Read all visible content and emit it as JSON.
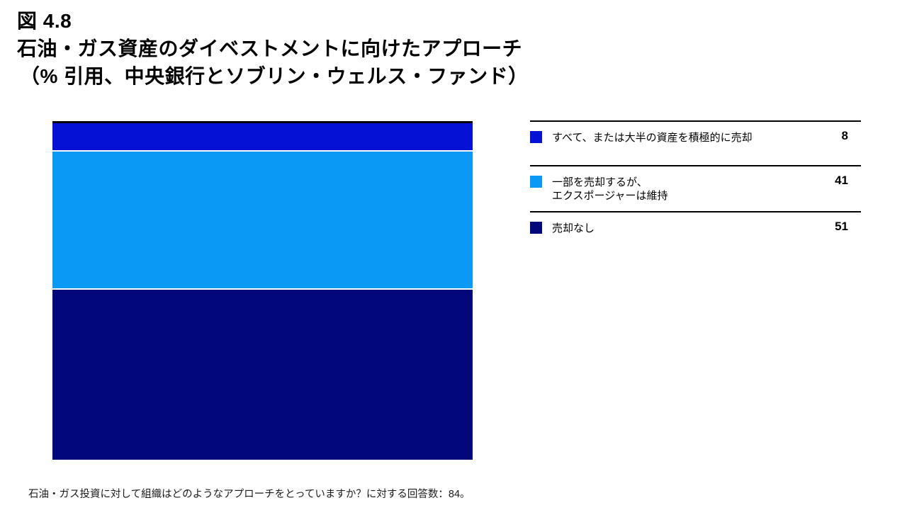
{
  "title": {
    "figure_label": "図 4.8",
    "main": "石油・ガス資産のダイベストメントに向けたアプローチ",
    "subtitle": "（% 引用、中央銀行とソブリン・ウェルス・ファンド）"
  },
  "chart_data": {
    "type": "bar",
    "stacking": "percent",
    "orientation": "vertical",
    "categories": [
      "中央銀行とソブリン・ウェルス・ファンド"
    ],
    "segments": [
      {
        "label": "すべて、または大半の資産を積極的に売却",
        "value": 8,
        "color": "#0512D6"
      },
      {
        "label": "一部を売却するが、エクスポージャーは維持",
        "value": 41,
        "color": "#0A99F4"
      },
      {
        "label": "売却なし",
        "value": 51,
        "color": "#02077A"
      }
    ],
    "ylim": [
      0,
      100
    ],
    "grid": false,
    "legend_position": "right",
    "title": "図 4.8 石油・ガス資産のダイベストメントに向けたアプローチ",
    "subtitle": "（% 引用、中央銀行とソブリン・ウェルス・ファンド）"
  },
  "legend": {
    "items": [
      {
        "label": "すべて、または大半の資産を積極的に売却",
        "value": "8"
      },
      {
        "label": "一部を売却するが、\nエクスポージャーは維持",
        "value": "41"
      },
      {
        "label": "売却なし",
        "value": "51"
      }
    ]
  },
  "footnote": "石油・ガス投資に対して組織はどのようなアプローチをとっていますか？に対する回答数：84。"
}
